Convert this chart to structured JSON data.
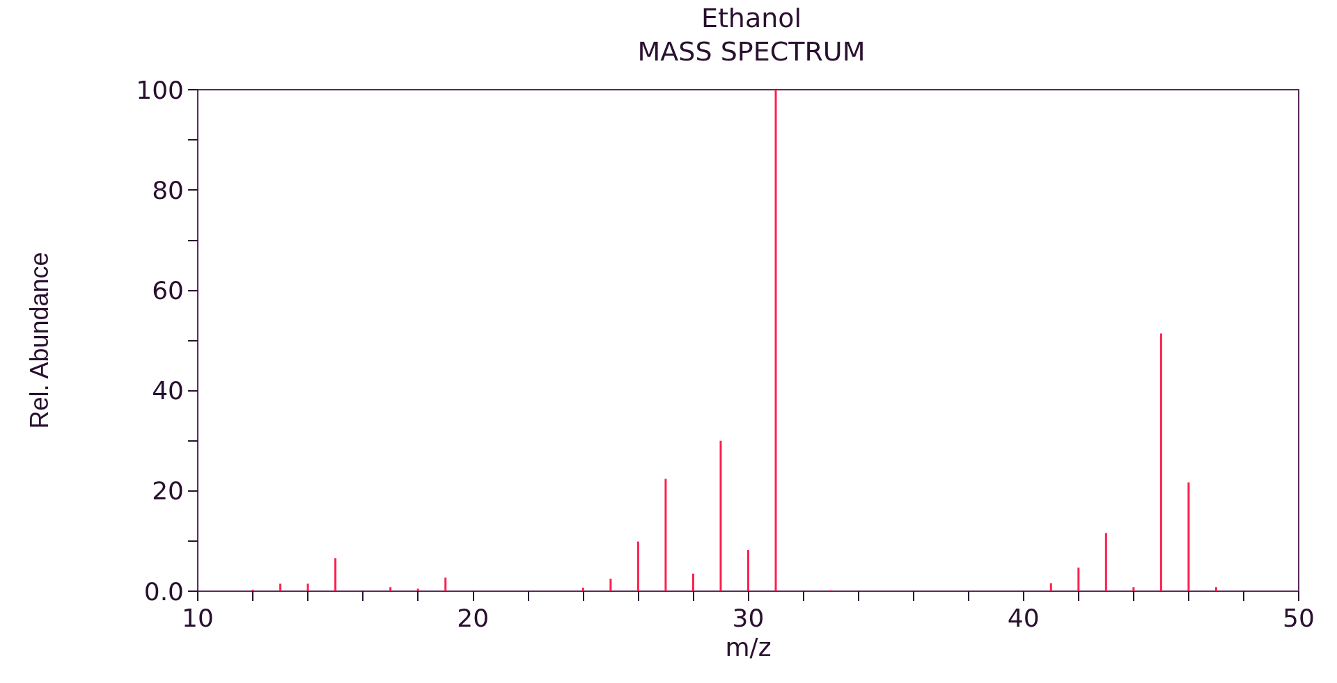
{
  "chart_data": {
    "type": "bar",
    "title": "Ethanol",
    "subtitle": "MASS SPECTRUM",
    "xlabel": "m/z",
    "ylabel": "Rel. Abundance",
    "x": [
      12,
      13,
      14,
      15,
      17,
      18,
      19,
      24,
      25,
      26,
      27,
      28,
      29,
      30,
      31,
      33,
      41,
      42,
      43,
      44,
      45,
      46,
      47
    ],
    "values": [
      0.3,
      1.5,
      1.5,
      6.6,
      0.8,
      0.5,
      2.7,
      0.7,
      2.5,
      9.9,
      22.4,
      3.5,
      30.0,
      8.2,
      100,
      0.2,
      1.6,
      4.7,
      11.6,
      0.8,
      51.4,
      21.7,
      0.8
    ],
    "color": "#ff1f4f",
    "xlim": [
      10,
      50
    ],
    "xticks": [
      10,
      {
        "value": 12,
        "label": null
      },
      {
        "value": 14,
        "label": null
      },
      {
        "value": 16,
        "label": null
      },
      {
        "value": 18,
        "label": null
      },
      20,
      {
        "value": 22,
        "label": null
      },
      {
        "value": 24,
        "label": null
      },
      {
        "value": 26,
        "label": null
      },
      {
        "value": 28,
        "label": null
      },
      30,
      {
        "value": 32,
        "label": null
      },
      {
        "value": 34,
        "label": null
      },
      {
        "value": 36,
        "label": null
      },
      {
        "value": 38,
        "label": null
      },
      40,
      {
        "value": 42,
        "label": null
      },
      {
        "value": 44,
        "label": null
      },
      {
        "value": 46,
        "label": null
      },
      {
        "value": 48,
        "label": null
      },
      50
    ],
    "ylim": [
      0,
      100
    ],
    "yticks": [
      {
        "value": 0,
        "label": "0.0"
      },
      {
        "value": 10,
        "label": null
      },
      20,
      {
        "value": 30,
        "label": null
      },
      40,
      {
        "value": 50,
        "label": null
      },
      60,
      {
        "value": 70,
        "label": null
      },
      80,
      {
        "value": 90,
        "label": null
      },
      100
    ],
    "grid": false
  }
}
